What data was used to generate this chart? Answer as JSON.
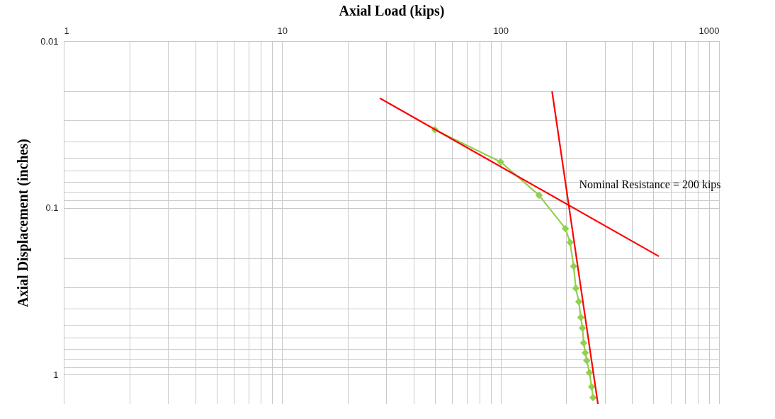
{
  "chart_data": {
    "type": "line",
    "xlabel": "Axial Load (kips)",
    "ylabel": "Axial Displacement (inches)",
    "log": "xy",
    "grid": true,
    "xlim": [
      1,
      1000
    ],
    "ylim": [
      1.5,
      0.01
    ],
    "xticks": [
      1,
      {
        "value": 2,
        "label": null
      },
      {
        "value": 3,
        "label": null
      },
      {
        "value": 4,
        "label": null
      },
      {
        "value": 5,
        "label": null
      },
      {
        "value": 6,
        "label": null
      },
      {
        "value": 7,
        "label": null
      },
      {
        "value": 8,
        "label": null
      },
      {
        "value": 9,
        "label": null
      },
      10,
      {
        "value": 20,
        "label": null
      },
      {
        "value": 30,
        "label": null
      },
      {
        "value": 40,
        "label": null
      },
      {
        "value": 50,
        "label": null
      },
      {
        "value": 60,
        "label": null
      },
      {
        "value": 70,
        "label": null
      },
      {
        "value": 80,
        "label": null
      },
      {
        "value": 90,
        "label": null
      },
      100,
      {
        "value": 200,
        "label": null
      },
      {
        "value": 300,
        "label": null
      },
      {
        "value": 400,
        "label": null
      },
      {
        "value": 500,
        "label": null
      },
      {
        "value": 600,
        "label": null
      },
      {
        "value": 700,
        "label": null
      },
      {
        "value": 800,
        "label": null
      },
      {
        "value": 900,
        "label": null
      },
      1000
    ],
    "yticks": [
      0.01,
      {
        "value": 0.02,
        "label": null
      },
      {
        "value": 0.03,
        "label": null
      },
      {
        "value": 0.04,
        "label": null
      },
      {
        "value": 0.05,
        "label": null
      },
      {
        "value": 0.06,
        "label": null
      },
      {
        "value": 0.07,
        "label": null
      },
      {
        "value": 0.08,
        "label": null
      },
      {
        "value": 0.09,
        "label": null
      },
      0.1,
      {
        "value": 0.2,
        "label": null
      },
      {
        "value": 0.3,
        "label": null
      },
      {
        "value": 0.4,
        "label": null
      },
      {
        "value": 0.5,
        "label": null
      },
      {
        "value": 0.6,
        "label": null
      },
      {
        "value": 0.7,
        "label": null
      },
      {
        "value": 0.8,
        "label": null
      },
      {
        "value": 0.9,
        "label": null
      },
      1
    ],
    "series": [
      {
        "color": "#92d050",
        "marker": "diamond",
        "x": [
          50,
          100,
          150,
          198,
          208,
          216,
          221,
          228,
          233,
          237,
          240,
          244,
          248,
          255,
          261,
          265
        ],
        "values": [
          0.034,
          0.053,
          0.084,
          0.133,
          0.161,
          0.224,
          0.303,
          0.365,
          0.453,
          0.525,
          0.644,
          0.739,
          0.822,
          0.971,
          1.18,
          1.37
        ]
      },
      {
        "type": "line",
        "color": "#ff0000",
        "marker": "none",
        "x": [
          28,
          530
        ],
        "values": [
          0.022,
          0.195
        ]
      },
      {
        "type": "line",
        "color": "#ff0000",
        "marker": "none",
        "x": [
          172,
          279
        ],
        "values": [
          0.02,
          1.5
        ]
      }
    ],
    "annotations": [
      {
        "text": "Nominal Resistance = 200 kips",
        "x": 200,
        "y": 0.1
      }
    ]
  }
}
